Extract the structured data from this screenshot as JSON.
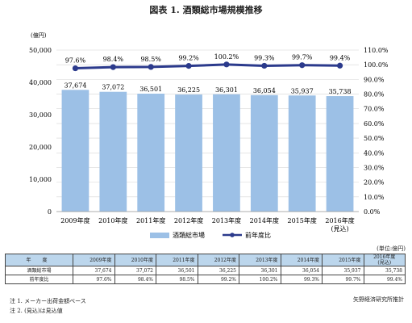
{
  "title": "図表 1. 酒類総市場規模推移",
  "chart_data": {
    "type": "bar",
    "categories": [
      "2009年度",
      "2010年度",
      "2011年度",
      "2012年度",
      "2013年度",
      "2014年度",
      "2015年度",
      "2016年度"
    ],
    "category_sublabels": [
      "",
      "",
      "",
      "",
      "",
      "",
      "",
      "(見込)"
    ],
    "series": [
      {
        "name": "酒類総市場",
        "type": "bar",
        "axis": "left",
        "color": "#9cc0e6",
        "values": [
          37674,
          37072,
          36501,
          36225,
          36301,
          36054,
          35937,
          35738
        ]
      },
      {
        "name": "前年度比",
        "type": "line",
        "axis": "right",
        "color": "#2b3a8c",
        "values": [
          97.6,
          98.4,
          98.5,
          99.2,
          100.2,
          99.3,
          99.7,
          99.4
        ]
      }
    ],
    "bar_labels": [
      "37,674",
      "37,072",
      "36,501",
      "36,225",
      "36,301",
      "36,054",
      "35,937",
      "35,738"
    ],
    "line_labels": [
      "97.6%",
      "98.4%",
      "98.5%",
      "99.2%",
      "100.2%",
      "99.3%",
      "99.7%",
      "99.4%"
    ],
    "ylabel_left": "(億円)",
    "ylim_left": [
      0,
      50000
    ],
    "ylim_right": [
      0,
      110
    ],
    "yticks_left": [
      "0",
      "10,000",
      "20,000",
      "30,000",
      "40,000",
      "50,000"
    ],
    "yticks_right": [
      "0.0%",
      "10.0%",
      "20.0%",
      "30.0%",
      "40.0%",
      "50.0%",
      "60.0%",
      "70.0%",
      "80.0%",
      "90.0%",
      "100.0%",
      "110.0%"
    ],
    "grid": true,
    "legend_position": "bottom"
  },
  "table": {
    "unit": "(単位:億円)",
    "header_label": "年 度",
    "years": [
      "2009年度",
      "2010年度",
      "2011年度",
      "2012年度",
      "2013年度",
      "2014年度",
      "2015年度",
      "2016年度"
    ],
    "last_year_sub": "(見込)",
    "rows": [
      {
        "label": "酒類総市場",
        "values": [
          "37,674",
          "37,072",
          "36,501",
          "36,225",
          "36,301",
          "36,054",
          "35,937",
          "35,738"
        ]
      },
      {
        "label": "前年度比",
        "values": [
          "97.6%",
          "98.4%",
          "98.5%",
          "99.2%",
          "100.2%",
          "99.3%",
          "99.7%",
          "99.4%"
        ]
      }
    ]
  },
  "notes": [
    "注 1. メーカー出荷金額ベース",
    "注 2. (見込)は見込値"
  ],
  "source": "矢野経済研究所推計"
}
